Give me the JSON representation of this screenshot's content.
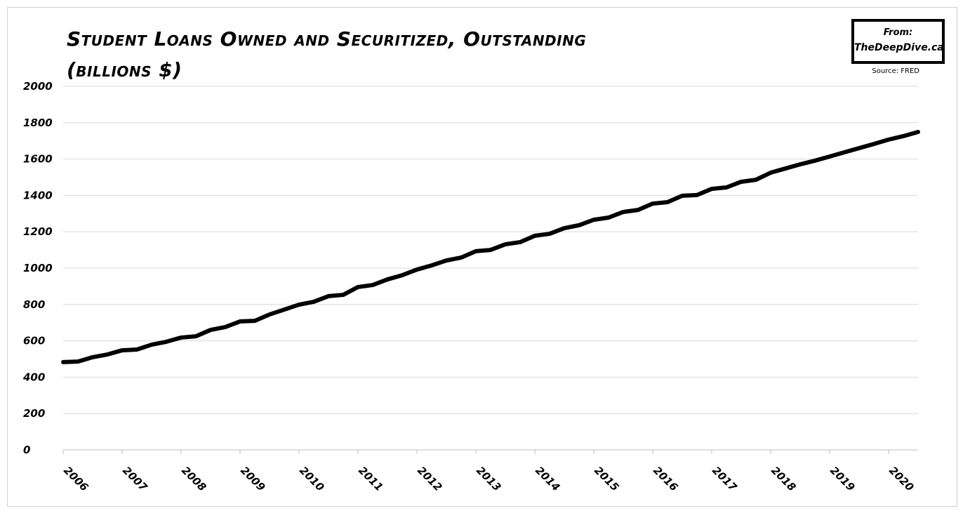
{
  "chart_data": {
    "type": "line",
    "title": "Student Loans Owned and Securitized, Outstanding (billions $)",
    "logo": {
      "line1": "From:",
      "line2": "TheDeepDive.ca"
    },
    "source": "Source: FRED",
    "x": [
      2006,
      2006.25,
      2006.5,
      2006.75,
      2007,
      2007.25,
      2007.5,
      2007.75,
      2008,
      2008.25,
      2008.5,
      2008.75,
      2009,
      2009.25,
      2009.5,
      2009.75,
      2010,
      2010.25,
      2010.5,
      2010.75,
      2011,
      2011.25,
      2011.5,
      2011.75,
      2012,
      2012.25,
      2012.5,
      2012.75,
      2013,
      2013.25,
      2013.5,
      2013.75,
      2014,
      2014.25,
      2014.5,
      2014.75,
      2015,
      2015.25,
      2015.5,
      2015.75,
      2016,
      2016.25,
      2016.5,
      2016.75,
      2017,
      2017.25,
      2017.5,
      2017.75,
      2018,
      2018.25,
      2018.5,
      2018.75,
      2019,
      2019.25,
      2019.5,
      2019.75,
      2020,
      2020.25,
      2020.5
    ],
    "series": [
      {
        "color": "#000000",
        "values": [
          483,
          486,
          510,
          525,
          548,
          552,
          579,
          595,
          618,
          625,
          660,
          676,
          707,
          710,
          745,
          772,
          799,
          815,
          846,
          853,
          896,
          907,
          938,
          961,
          992,
          1015,
          1042,
          1058,
          1093,
          1100,
          1131,
          1143,
          1178,
          1189,
          1220,
          1236,
          1266,
          1278,
          1309,
          1320,
          1355,
          1363,
          1398,
          1402,
          1436,
          1444,
          1475,
          1486,
          1525,
          1548,
          1571,
          1591,
          1614,
          1637,
          1660,
          1683,
          1707,
          1726,
          1749
        ]
      }
    ],
    "xlim": [
      2006,
      2020.5
    ],
    "xticks": [
      2006,
      2007,
      2008,
      2009,
      2010,
      2011,
      2012,
      2013,
      2014,
      2015,
      2016,
      2017,
      2018,
      2019,
      2020
    ],
    "ylim": [
      0,
      2000
    ],
    "yticks": [
      0,
      200,
      400,
      600,
      800,
      1000,
      1200,
      1400,
      1600,
      1800,
      2000
    ],
    "grid": true
  }
}
